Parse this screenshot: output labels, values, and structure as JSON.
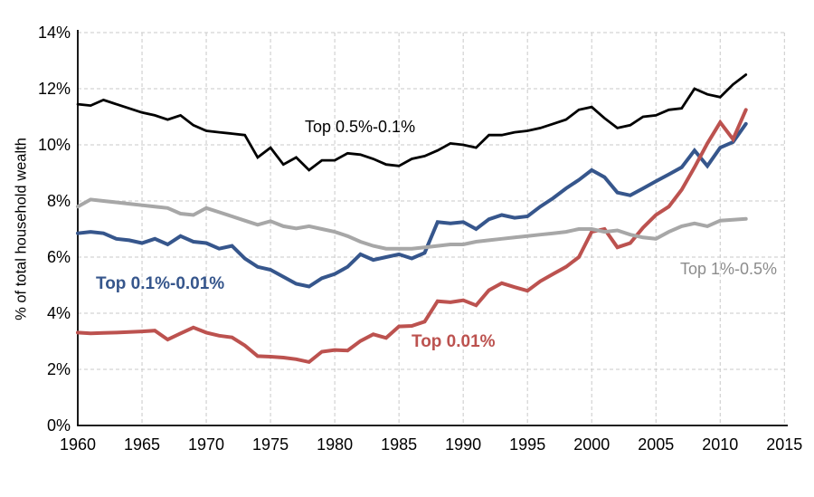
{
  "chart_data": {
    "type": "line",
    "title": "",
    "xlabel": "",
    "ylabel": "% of total household wealth",
    "xlim": [
      1960,
      2015
    ],
    "ylim": [
      0,
      14
    ],
    "grid": "dashed",
    "legend_position": "direct-labels-on-chart",
    "x_tick_labels": [
      "1960",
      "1965",
      "1970",
      "1975",
      "1980",
      "1985",
      "1990",
      "1995",
      "2000",
      "2005",
      "2010",
      "2015"
    ],
    "y_tick_labels": [
      "0%",
      "2%",
      "4%",
      "6%",
      "8%",
      "10%",
      "12%",
      "14%"
    ],
    "years": [
      1960,
      1961,
      1962,
      1963,
      1964,
      1965,
      1966,
      1967,
      1968,
      1969,
      1970,
      1971,
      1972,
      1973,
      1974,
      1975,
      1976,
      1977,
      1978,
      1979,
      1980,
      1981,
      1982,
      1983,
      1984,
      1985,
      1986,
      1987,
      1988,
      1989,
      1990,
      1991,
      1992,
      1993,
      1994,
      1995,
      1996,
      1997,
      1998,
      1999,
      2000,
      2001,
      2002,
      2003,
      2004,
      2005,
      2006,
      2007,
      2008,
      2009,
      2010,
      2011,
      2012
    ],
    "series": [
      {
        "name": "top-0.5-0.1",
        "label": "Top 0.5%-0.1%",
        "color": "#000000",
        "label_color": "#000000",
        "label_bold": false,
        "line_width": 2.8,
        "values": [
          11.45,
          11.4,
          11.6,
          11.45,
          11.3,
          11.15,
          11.05,
          10.9,
          11.05,
          10.7,
          10.5,
          10.45,
          10.4,
          10.35,
          9.55,
          9.9,
          9.3,
          9.55,
          9.1,
          9.45,
          9.45,
          9.7,
          9.65,
          9.5,
          9.3,
          9.25,
          9.5,
          9.6,
          9.8,
          10.05,
          10.0,
          9.9,
          10.35,
          10.35,
          10.45,
          10.5,
          10.6,
          10.75,
          10.9,
          11.25,
          11.35,
          10.95,
          10.6,
          10.7,
          11.0,
          11.05,
          11.25,
          11.3,
          12.0,
          11.8,
          11.7,
          12.15,
          12.5
        ]
      },
      {
        "name": "top-0.1-0.01",
        "label": "Top 0.1%-0.01%",
        "color": "#36568C",
        "label_color": "#36568C",
        "label_bold": true,
        "line_width": 4,
        "values": [
          6.85,
          6.9,
          6.85,
          6.65,
          6.6,
          6.5,
          6.65,
          6.45,
          6.75,
          6.55,
          6.5,
          6.3,
          6.4,
          5.95,
          5.65,
          5.55,
          5.3,
          5.05,
          4.95,
          5.25,
          5.4,
          5.65,
          6.1,
          5.9,
          6.0,
          6.1,
          5.95,
          6.15,
          7.25,
          7.2,
          7.25,
          7.0,
          7.35,
          7.5,
          7.4,
          7.45,
          7.8,
          8.1,
          8.45,
          8.75,
          9.1,
          8.85,
          8.3,
          8.2,
          8.45,
          8.7,
          8.95,
          9.2,
          9.8,
          9.25,
          9.9,
          10.1,
          10.75
        ]
      },
      {
        "name": "top-0.01",
        "label": "Top 0.01%",
        "color": "#BC524F",
        "label_color": "#BC524F",
        "label_bold": true,
        "line_width": 4,
        "values": [
          3.31,
          3.28,
          3.3,
          3.31,
          3.33,
          3.35,
          3.38,
          3.06,
          3.28,
          3.49,
          3.31,
          3.2,
          3.14,
          2.85,
          2.47,
          2.45,
          2.42,
          2.36,
          2.26,
          2.63,
          2.69,
          2.67,
          3.01,
          3.25,
          3.12,
          3.53,
          3.55,
          3.7,
          4.43,
          4.39,
          4.46,
          4.28,
          4.82,
          5.07,
          4.93,
          4.8,
          5.14,
          5.4,
          5.65,
          6.0,
          6.9,
          7.0,
          6.35,
          6.5,
          7.05,
          7.5,
          7.8,
          8.4,
          9.2,
          10.05,
          10.8,
          10.2,
          11.25
        ]
      },
      {
        "name": "top-1-0.5",
        "label": "Top 1%-0.5%",
        "color": "#A7A7A7",
        "label_color": "#8C8C8C",
        "label_bold": false,
        "line_width": 4,
        "values": [
          7.8,
          8.05,
          8.0,
          7.95,
          7.9,
          7.85,
          7.8,
          7.75,
          7.55,
          7.5,
          7.75,
          7.6,
          7.45,
          7.3,
          7.15,
          7.28,
          7.1,
          7.02,
          7.1,
          7.0,
          6.9,
          6.75,
          6.55,
          6.4,
          6.3,
          6.3,
          6.3,
          6.35,
          6.4,
          6.45,
          6.45,
          6.55,
          6.6,
          6.65,
          6.7,
          6.75,
          6.8,
          6.85,
          6.9,
          7.0,
          7.0,
          6.9,
          6.95,
          6.8,
          6.7,
          6.65,
          6.9,
          7.1,
          7.2,
          7.1,
          7.3,
          7.33,
          7.36
        ]
      }
    ]
  }
}
